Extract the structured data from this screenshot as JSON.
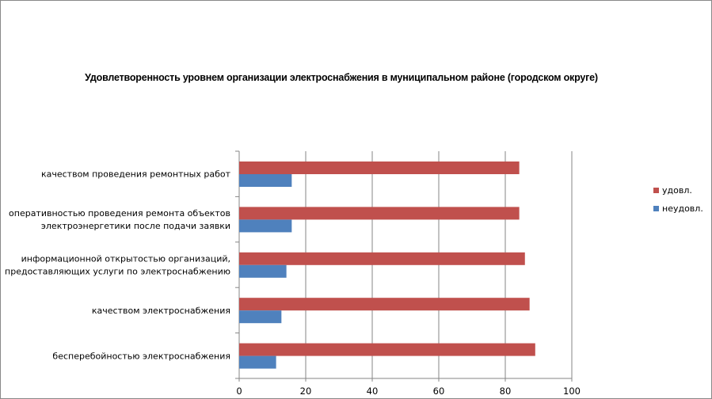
{
  "chart_data": {
    "type": "bar",
    "orientation": "horizontal",
    "title": "Удовлетворенность уровнем организации электроснабжения в муниципальном районе (городском округе)",
    "categories": [
      [
        "качеством проведения ремонтных работ"
      ],
      [
        "оперативностью проведения ремонта объектов",
        "электроэнергетики после подачи заявки"
      ],
      [
        "информационной открытостью организаций,",
        "предоставляющих услуги по электроснабжению"
      ],
      [
        "качеством электроснабжения"
      ],
      [
        "бесперебойностью электроснабжения"
      ]
    ],
    "series": [
      {
        "name": "удовл.",
        "color": "#C0504D",
        "values": [
          84.2,
          84.2,
          85.9,
          87.3,
          89.0
        ]
      },
      {
        "name": "неудовл.",
        "color": "#4F81BD",
        "values": [
          15.8,
          15.8,
          14.2,
          12.7,
          11.1
        ]
      }
    ],
    "xlim": [
      0,
      100
    ],
    "xticks": [
      "0",
      "20",
      "40",
      "60",
      "80",
      "100"
    ],
    "grid": true,
    "legend_position": "right"
  }
}
